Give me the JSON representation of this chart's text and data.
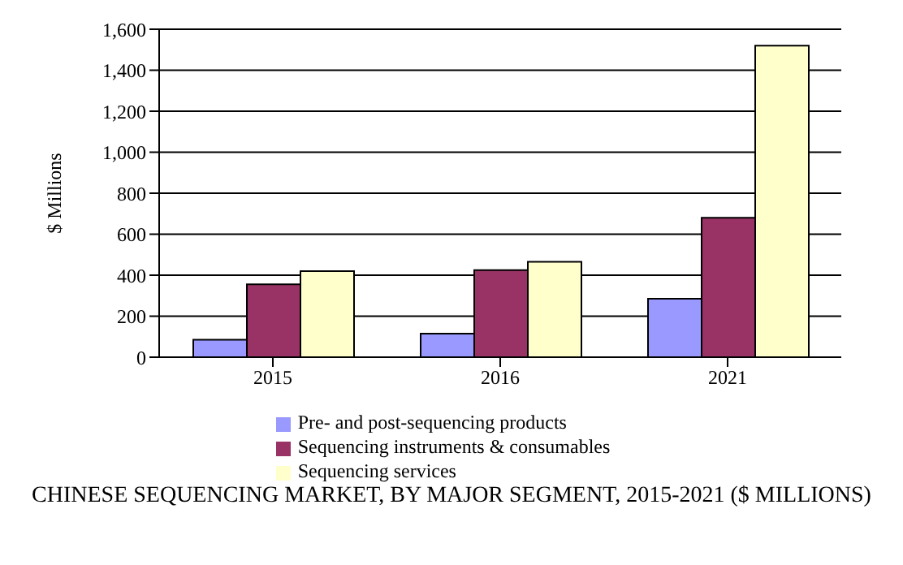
{
  "chart_data": {
    "type": "bar",
    "title": "CHINESE SEQUENCING MARKET, BY MAJOR SEGMENT, 2015-2021 ($ MILLIONS)",
    "ylabel": "$ Millions",
    "categories": [
      "2015",
      "2016",
      "2021"
    ],
    "series": [
      {
        "name": "Pre- and post-sequencing products",
        "color": "#9999ff",
        "values": [
          85,
          115,
          285
        ]
      },
      {
        "name": "Sequencing instruments & consumables",
        "color": "#993366",
        "values": [
          355,
          425,
          680
        ]
      },
      {
        "name": "Sequencing services",
        "color": "#ffffcc",
        "values": [
          420,
          465,
          1520
        ]
      }
    ],
    "ylim": [
      0,
      1600
    ],
    "yticks": [
      {
        "value": 0,
        "label": "0"
      },
      {
        "value": 200,
        "label": "200"
      },
      {
        "value": 400,
        "label": "400"
      },
      {
        "value": 600,
        "label": "600"
      },
      {
        "value": 800,
        "label": "800"
      },
      {
        "value": 1000,
        "label": "1,000"
      },
      {
        "value": 1200,
        "label": "1,200"
      },
      {
        "value": 1400,
        "label": "1,400"
      },
      {
        "value": 1600,
        "label": "1,600"
      }
    ],
    "grid": "y",
    "legend": "bottom"
  }
}
